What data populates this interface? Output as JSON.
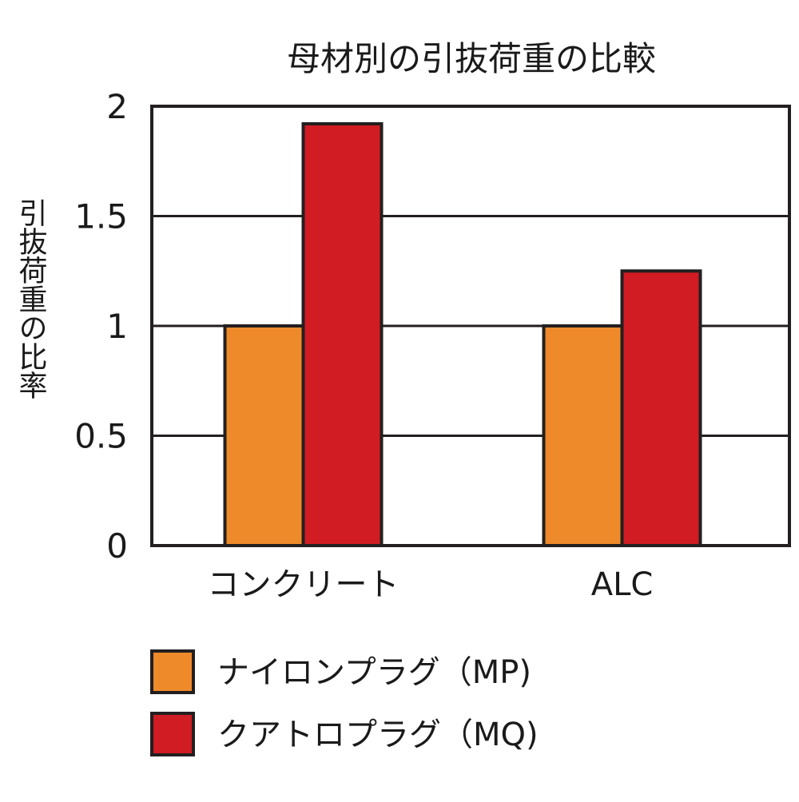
{
  "chart_data": {
    "type": "bar",
    "title": "母材別の引抜荷重の比較",
    "ylabel": "引抜荷重の比率",
    "xlabel": "",
    "categories": [
      "コンクリート",
      "ALC"
    ],
    "series": [
      {
        "name": "ナイロンプラグ（MP)",
        "values": [
          1.0,
          1.0
        ],
        "color": "#ee8a2a"
      },
      {
        "name": "クアトロプラグ（MQ)",
        "values": [
          1.92,
          1.25
        ],
        "color": "#d01c22"
      }
    ],
    "ylim": [
      0,
      2
    ],
    "yticks": [
      "0",
      "0.5",
      "1",
      "1.5",
      "2"
    ],
    "grid": true,
    "legend_position": "bottom-left"
  }
}
